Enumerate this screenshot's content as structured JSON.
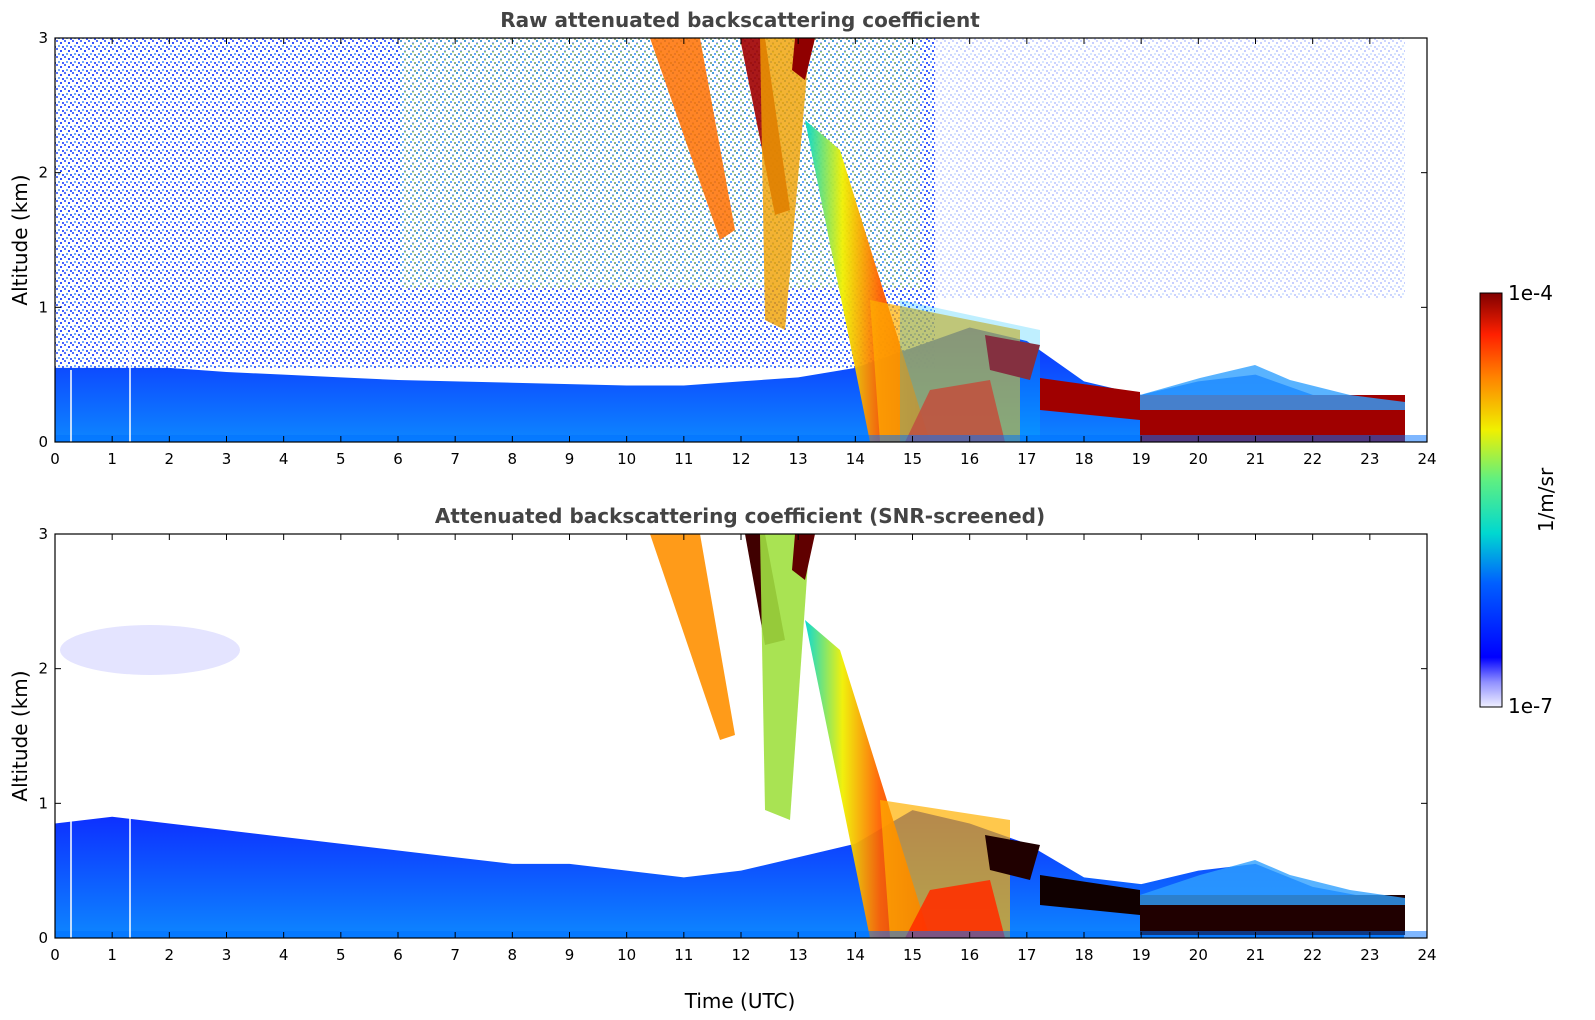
{
  "chart_data": [
    {
      "type": "heatmap",
      "title": "Raw attenuated backscattering coefficient",
      "xlabel": "",
      "ylabel": "Altitude (km)",
      "xlim": [
        0,
        24
      ],
      "ylim": [
        0,
        3
      ],
      "x_ticks": [
        "0",
        "1",
        "2",
        "3",
        "4",
        "5",
        "6",
        "7",
        "8",
        "9",
        "10",
        "11",
        "12",
        "13",
        "14",
        "15",
        "16",
        "17",
        "18",
        "19",
        "20",
        "21",
        "22",
        "23",
        "24"
      ],
      "y_ticks": [
        "0",
        "1",
        "2",
        "3"
      ],
      "boundary_layer_top_km": [
        0.55,
        0.55,
        0.55,
        0.52,
        0.5,
        0.48,
        0.46,
        0.45,
        0.44,
        0.43,
        0.42,
        0.42,
        0.45,
        0.48,
        0.55,
        0.7,
        0.85,
        0.75,
        0.45,
        0.35,
        0.45,
        0.5,
        0.35,
        0.28
      ],
      "screened": false
    },
    {
      "type": "heatmap",
      "title": "Attenuated backscattering coefficient (SNR-screened)",
      "xlabel": "Time (UTC)",
      "ylabel": "Altitude (km)",
      "xlim": [
        0,
        24
      ],
      "ylim": [
        0,
        3
      ],
      "x_ticks": [
        "0",
        "1",
        "2",
        "3",
        "4",
        "5",
        "6",
        "7",
        "8",
        "9",
        "10",
        "11",
        "12",
        "13",
        "14",
        "15",
        "16",
        "17",
        "18",
        "19",
        "20",
        "21",
        "22",
        "23",
        "24"
      ],
      "y_ticks": [
        "0",
        "1",
        "2",
        "3"
      ],
      "boundary_layer_top_km": [
        0.85,
        0.9,
        0.85,
        0.8,
        0.75,
        0.7,
        0.65,
        0.6,
        0.55,
        0.55,
        0.5,
        0.45,
        0.5,
        0.6,
        0.7,
        0.95,
        0.85,
        0.7,
        0.45,
        0.4,
        0.5,
        0.55,
        0.38,
        0.3
      ],
      "screened": true
    }
  ],
  "colorbar": {
    "max_label": "1e-4",
    "min_label": "1e-7",
    "unit_label": "1/m/sr",
    "scale": "log",
    "range": [
      1e-07,
      0.0001
    ]
  },
  "colors": {
    "title": "#444444",
    "lowest": "#f0f0ff",
    "low": "#0000ff",
    "mid": "#00d8d0",
    "midhigh": "#f0f000",
    "high": "#ff2000",
    "highest": "#800000"
  }
}
